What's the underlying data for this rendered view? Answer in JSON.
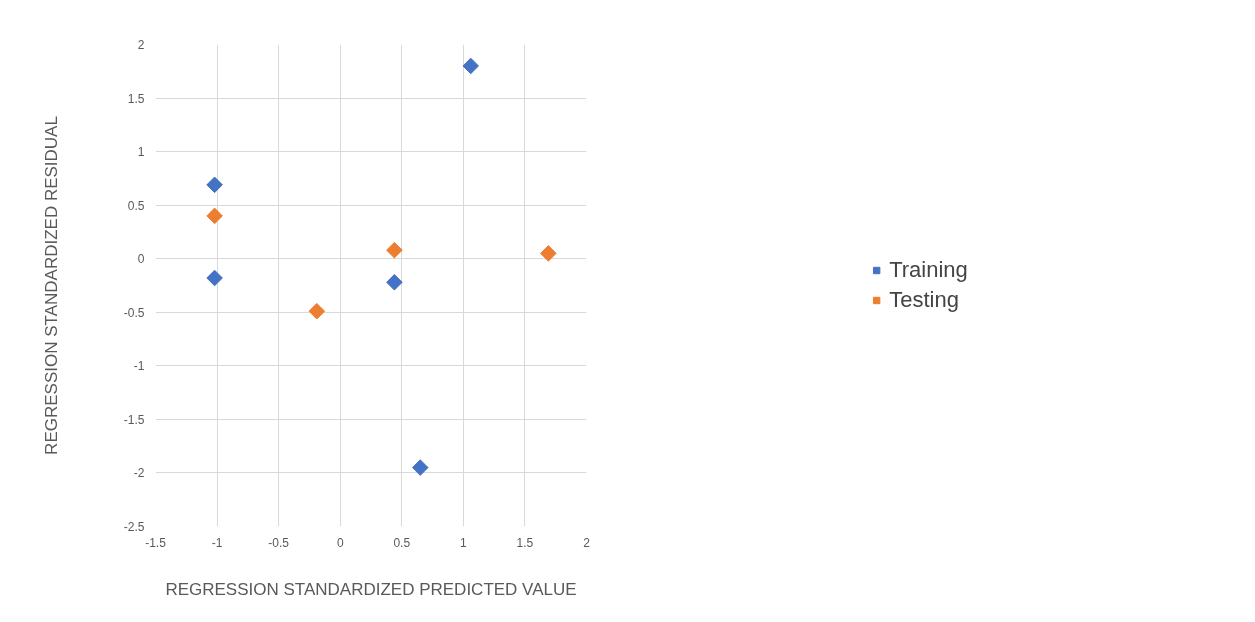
{
  "chart_data": {
    "type": "scatter",
    "xlabel": "REGRESSION STANDARDIZED PREDICTED VALUE",
    "ylabel": "REGRESSION STANDARDIZED RESIDUAL",
    "series": [
      {
        "name": "Training",
        "color": "#4472c4",
        "x": [
          -1.02,
          -1.02,
          0.44,
          0.65,
          1.06
        ],
        "values": [
          0.69,
          -0.18,
          -0.22,
          -1.95,
          1.8
        ]
      },
      {
        "name": "Testing",
        "color": "#ed7d31",
        "x": [
          -1.02,
          -0.19,
          0.44,
          1.69
        ],
        "values": [
          0.4,
          -0.49,
          0.08,
          0.05
        ]
      }
    ],
    "xlim": [
      -1.5,
      2
    ],
    "xticks": [
      -1.5,
      -1,
      -0.5,
      0,
      0.5,
      1,
      1.5,
      2
    ],
    "ylim": [
      -2.5,
      2
    ],
    "yticks": [
      -2.5,
      -2,
      -1.5,
      -1,
      -0.5,
      0,
      0.5,
      1,
      1.5,
      2
    ],
    "grid": true,
    "legend": "right",
    "marker": "diamond"
  }
}
